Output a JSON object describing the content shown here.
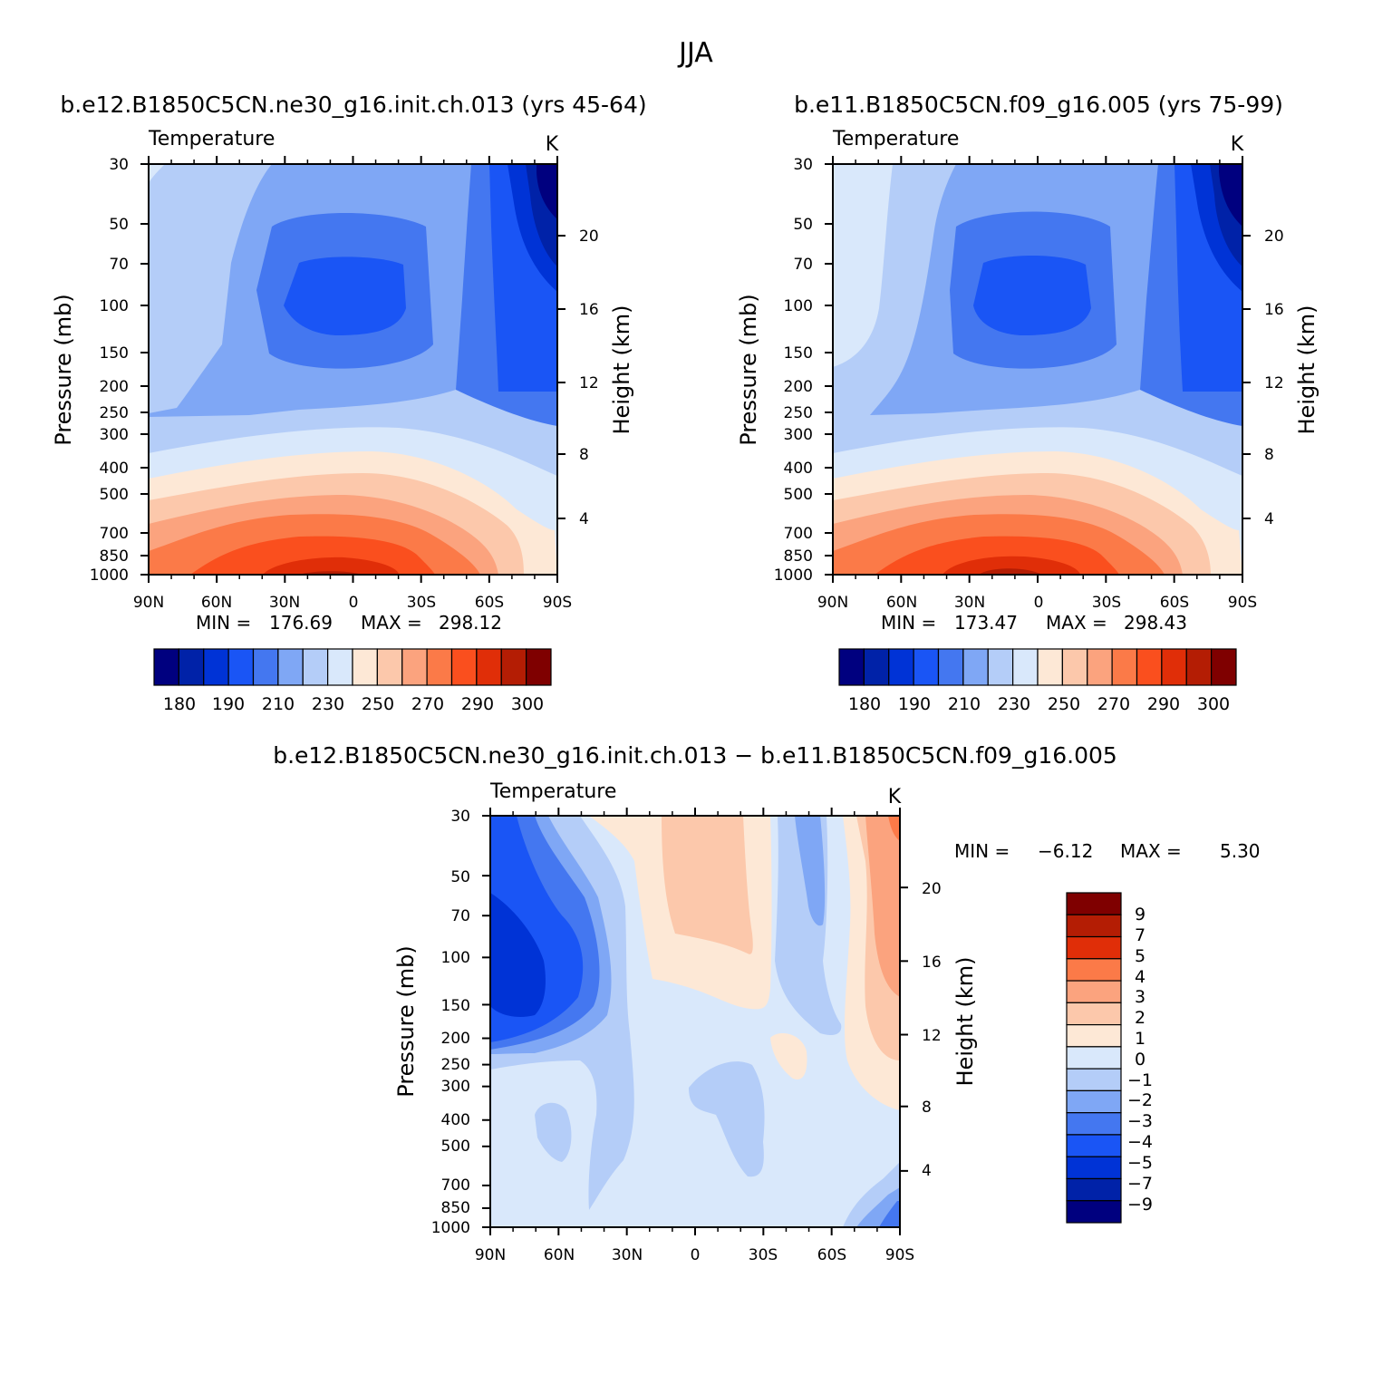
{
  "figure": {
    "title": "JJA"
  },
  "chart_data": [
    {
      "type": "heatmap",
      "title": "b.e12.B1850C5CN.ne30_g16.init.ch.013 (yrs 45-64)",
      "left_label": "Temperature",
      "right_label": "K",
      "xlabel": "",
      "ylabel": "Pressure (mb)",
      "y2label": "Height (km)",
      "x_ticks": [
        "90N",
        "60N",
        "30N",
        "0",
        "30S",
        "60S",
        "90S"
      ],
      "y_ticks": [
        "30",
        "50",
        "70",
        "100",
        "150",
        "200",
        "250",
        "300",
        "400",
        "500",
        "700",
        "850",
        "1000"
      ],
      "y2_ticks": [
        "20",
        "16",
        "12",
        "8",
        "4"
      ],
      "ylim": [
        1000,
        30
      ],
      "stats": {
        "min_label": "MIN =",
        "min": "176.69",
        "max_label": "MAX =",
        "max": "298.12"
      },
      "contour_levels": [
        "180",
        "190",
        "210",
        "230",
        "250",
        "270",
        "290",
        "300"
      ],
      "colors": [
        "#00007f",
        "#0022a8",
        "#0033d6",
        "#1a55f5",
        "#4477f0",
        "#7fa7f5",
        "#b4cdf8",
        "#d9e8fb",
        "#fde8d6",
        "#fcc8ab",
        "#fba37e",
        "#fb7a48",
        "#fa4f1e",
        "#e02e08",
        "#b41d04",
        "#7f0000"
      ]
    },
    {
      "type": "heatmap",
      "title": "b.e11.B1850C5CN.f09_g16.005 (yrs 75-99)",
      "left_label": "Temperature",
      "right_label": "K",
      "xlabel": "",
      "ylabel": "Pressure (mb)",
      "y2label": "Height (km)",
      "x_ticks": [
        "90N",
        "60N",
        "30N",
        "0",
        "30S",
        "60S",
        "90S"
      ],
      "y_ticks": [
        "30",
        "50",
        "70",
        "100",
        "150",
        "200",
        "250",
        "300",
        "400",
        "500",
        "700",
        "850",
        "1000"
      ],
      "y2_ticks": [
        "20",
        "16",
        "12",
        "8",
        "4"
      ],
      "ylim": [
        1000,
        30
      ],
      "stats": {
        "min_label": "MIN =",
        "min": "173.47",
        "max_label": "MAX =",
        "max": "298.43"
      },
      "contour_levels": [
        "180",
        "190",
        "210",
        "230",
        "250",
        "270",
        "290",
        "300"
      ],
      "colors": [
        "#00007f",
        "#0022a8",
        "#0033d6",
        "#1a55f5",
        "#4477f0",
        "#7fa7f5",
        "#b4cdf8",
        "#d9e8fb",
        "#fde8d6",
        "#fcc8ab",
        "#fba37e",
        "#fb7a48",
        "#fa4f1e",
        "#e02e08",
        "#b41d04",
        "#7f0000"
      ]
    },
    {
      "type": "heatmap",
      "title": "b.e12.B1850C5CN.ne30_g16.init.ch.013 − b.e11.B1850C5CN.f09_g16.005",
      "left_label": "Temperature",
      "right_label": "K",
      "xlabel": "",
      "ylabel": "Pressure (mb)",
      "y2label": "Height (km)",
      "x_ticks": [
        "90N",
        "60N",
        "30N",
        "0",
        "30S",
        "60S",
        "90S"
      ],
      "y_ticks": [
        "30",
        "50",
        "70",
        "100",
        "150",
        "200",
        "250",
        "300",
        "400",
        "500",
        "700",
        "850",
        "1000"
      ],
      "y2_ticks": [
        "20",
        "16",
        "12",
        "8",
        "4"
      ],
      "ylim": [
        1000,
        30
      ],
      "stats": {
        "min_label": "MIN =",
        "min": "−6.12",
        "max_label": "MAX =",
        "max": "5.30"
      },
      "contour_levels": [
        "9",
        "7",
        "5",
        "4",
        "3",
        "2",
        "1",
        "0",
        "−1",
        "−2",
        "−3",
        "−4",
        "−5",
        "−7",
        "−9"
      ],
      "colors": [
        "#7f0000",
        "#b41d04",
        "#e02e08",
        "#fb7a48",
        "#fba37e",
        "#fcc8ab",
        "#fde8d6",
        "#d9e8fb",
        "#b4cdf8",
        "#7fa7f5",
        "#4477f0",
        "#1a55f5",
        "#0033d6",
        "#0022a8",
        "#00007f"
      ]
    }
  ]
}
